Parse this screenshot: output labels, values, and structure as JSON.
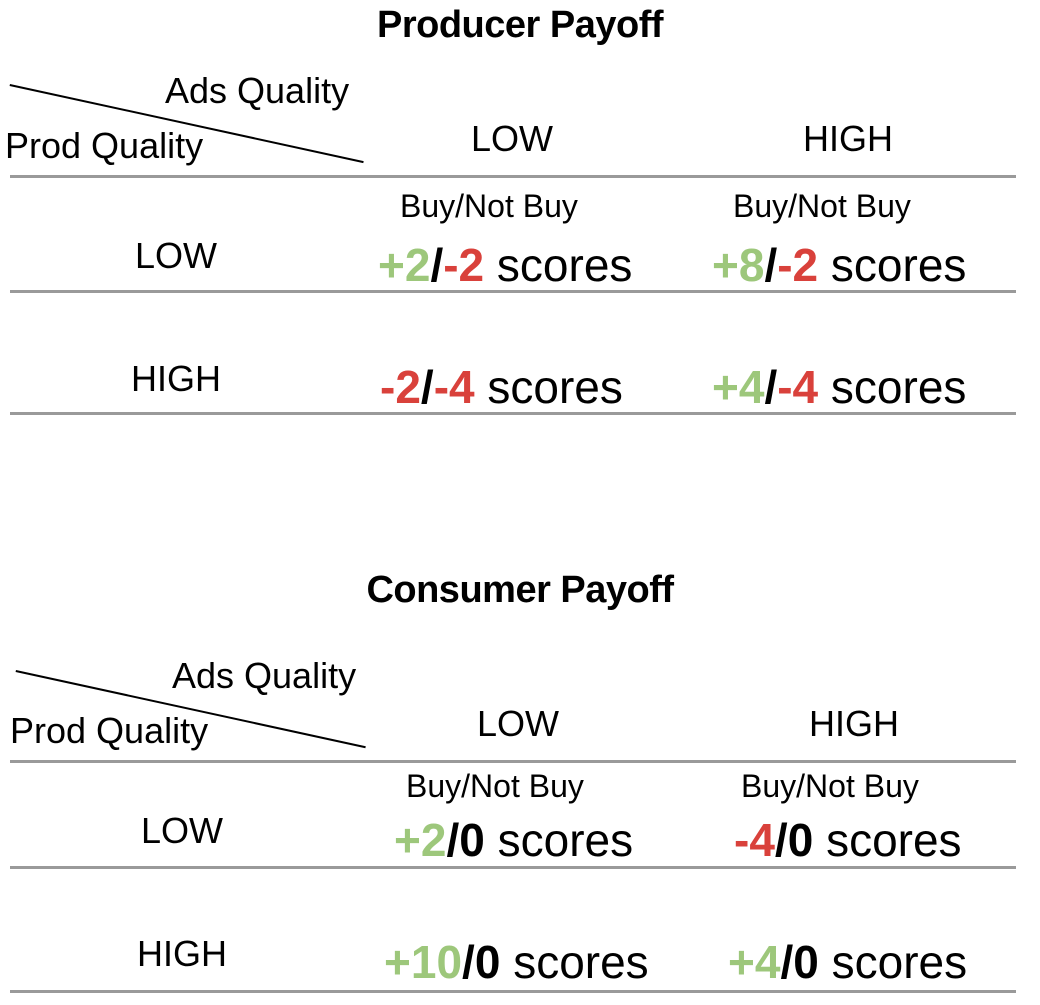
{
  "colors": {
    "positive": "#9dc77b",
    "negative": "#d9413b",
    "neutral": "#000000",
    "rule": "#9a9a9a"
  },
  "tables": [
    {
      "title": "Producer Payoff",
      "column_header_label": "Ads Quality",
      "row_header_label": "Prod Quality",
      "columns": [
        "LOW",
        "HIGH"
      ],
      "subheader": "Buy/Not Buy",
      "rows": [
        {
          "label": "LOW",
          "cells": [
            {
              "buy": "+2",
              "buy_color": "positive",
              "slash": "/",
              "not_buy": "-2",
              "not_buy_color": "negative",
              "unit": "scores"
            },
            {
              "buy": "+8",
              "buy_color": "positive",
              "slash": "/",
              "not_buy": "-2",
              "not_buy_color": "negative",
              "unit": "scores"
            }
          ]
        },
        {
          "label": "HIGH",
          "cells": [
            {
              "buy": "-2",
              "buy_color": "negative",
              "slash": "/",
              "not_buy": "-4",
              "not_buy_color": "negative",
              "unit": "scores"
            },
            {
              "buy": "+4",
              "buy_color": "positive",
              "slash": "/",
              "not_buy": "-4",
              "not_buy_color": "negative",
              "unit": "scores"
            }
          ]
        }
      ]
    },
    {
      "title": "Consumer Payoff",
      "column_header_label": "Ads Quality",
      "row_header_label": "Prod Quality",
      "columns": [
        "LOW",
        "HIGH"
      ],
      "subheader": "Buy/Not Buy",
      "rows": [
        {
          "label": "LOW",
          "cells": [
            {
              "buy": "+2",
              "buy_color": "positive",
              "slash": "/",
              "not_buy": "0",
              "not_buy_color": "neutral",
              "unit": "scores"
            },
            {
              "buy": "-4",
              "buy_color": "negative",
              "slash": "/",
              "not_buy": "0",
              "not_buy_color": "neutral",
              "unit": "scores"
            }
          ]
        },
        {
          "label": "HIGH",
          "cells": [
            {
              "buy": "+10",
              "buy_color": "positive",
              "slash": "/",
              "not_buy": "0",
              "not_buy_color": "neutral",
              "unit": "scores"
            },
            {
              "buy": "+4",
              "buy_color": "positive",
              "slash": "/",
              "not_buy": "0",
              "not_buy_color": "neutral",
              "unit": "scores"
            }
          ]
        }
      ]
    }
  ]
}
